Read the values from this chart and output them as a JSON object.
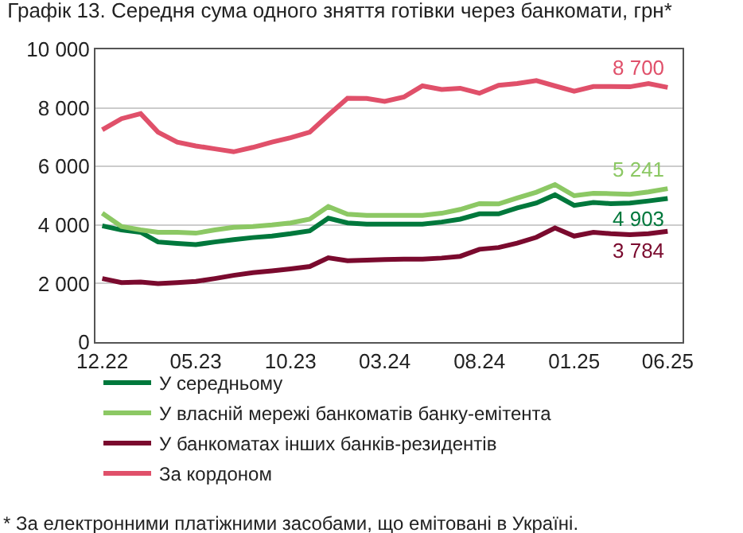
{
  "chart_data": {
    "type": "line",
    "title": "Графік 13. Середня сума одного зняття готівки через банкомати, грн*",
    "x": [
      "2022-12",
      "2023-01",
      "2023-02",
      "2023-03",
      "2023-04",
      "2023-05",
      "2023-06",
      "2023-07",
      "2023-08",
      "2023-09",
      "2023-10",
      "2023-11",
      "2023-12",
      "2024-01",
      "2024-02",
      "2024-03",
      "2024-04",
      "2024-05",
      "2024-06",
      "2024-07",
      "2024-08",
      "2024-09",
      "2024-10",
      "2024-11",
      "2024-12",
      "2025-01",
      "2025-02",
      "2025-03",
      "2025-04",
      "2025-05",
      "2025-06"
    ],
    "series": [
      {
        "name": "У середньому",
        "color": "#00783c",
        "values": [
          3970,
          3830,
          3750,
          3420,
          3370,
          3330,
          3420,
          3500,
          3570,
          3620,
          3700,
          3800,
          4230,
          4070,
          4030,
          4030,
          4030,
          4030,
          4100,
          4200,
          4380,
          4380,
          4580,
          4750,
          5030,
          4670,
          4770,
          4730,
          4750,
          4820,
          4903
        ],
        "value_labels": [
          null,
          null,
          null,
          null,
          null,
          null,
          null,
          null,
          null,
          null,
          null,
          null,
          null,
          null,
          null,
          null,
          null,
          null,
          null,
          null,
          null,
          null,
          null,
          null,
          null,
          null,
          null,
          null,
          null,
          null,
          "4 903"
        ]
      },
      {
        "name": "У власній мережі банкоматів банку-емітента",
        "color": "#8cc864",
        "values": [
          4400,
          3950,
          3830,
          3750,
          3750,
          3720,
          3830,
          3920,
          3950,
          4000,
          4070,
          4200,
          4630,
          4370,
          4330,
          4330,
          4330,
          4330,
          4400,
          4530,
          4730,
          4720,
          4920,
          5120,
          5380,
          5000,
          5080,
          5070,
          5050,
          5130,
          5241
        ],
        "value_labels": [
          null,
          null,
          null,
          null,
          null,
          null,
          null,
          null,
          null,
          null,
          null,
          null,
          null,
          null,
          null,
          null,
          null,
          null,
          null,
          null,
          null,
          null,
          null,
          null,
          null,
          null,
          null,
          null,
          null,
          null,
          "5 241"
        ]
      },
      {
        "name": "У банкоматах інших банків-резидентів",
        "color": "#7a0a2e",
        "values": [
          2170,
          2030,
          2050,
          2000,
          2030,
          2070,
          2170,
          2280,
          2370,
          2430,
          2500,
          2580,
          2880,
          2780,
          2800,
          2820,
          2830,
          2830,
          2870,
          2930,
          3170,
          3230,
          3380,
          3580,
          3900,
          3620,
          3750,
          3700,
          3670,
          3700,
          3784
        ],
        "value_labels": [
          null,
          null,
          null,
          null,
          null,
          null,
          null,
          null,
          null,
          null,
          null,
          null,
          null,
          null,
          null,
          null,
          null,
          null,
          null,
          null,
          null,
          null,
          null,
          null,
          null,
          null,
          null,
          null,
          null,
          null,
          "3 784"
        ]
      },
      {
        "name": "За кордоном",
        "color": "#e0506a",
        "values": [
          7250,
          7630,
          7800,
          7170,
          6830,
          6700,
          6600,
          6500,
          6650,
          6830,
          6980,
          7170,
          7750,
          8330,
          8320,
          8220,
          8370,
          8750,
          8630,
          8670,
          8500,
          8770,
          8830,
          8930,
          8750,
          8570,
          8730,
          8730,
          8720,
          8830,
          8700
        ],
        "value_labels": [
          null,
          null,
          null,
          null,
          null,
          null,
          null,
          null,
          null,
          null,
          null,
          null,
          null,
          null,
          null,
          null,
          null,
          null,
          null,
          null,
          null,
          null,
          null,
          null,
          null,
          null,
          null,
          null,
          null,
          null,
          "8 700"
        ]
      }
    ],
    "xlim": [
      "2022-11-20",
      "2025-06-25"
    ],
    "xticks": [
      {
        "value": "2022-12",
        "label": "12.22"
      },
      {
        "value": "2023-05",
        "label": "05.23"
      },
      {
        "value": "2023-10",
        "label": "10.23"
      },
      {
        "value": "2024-03",
        "label": "03.24"
      },
      {
        "value": "2024-08",
        "label": "08.24"
      },
      {
        "value": "2025-01",
        "label": "01.25"
      },
      {
        "value": "2025-06",
        "label": "06.25"
      }
    ],
    "ylim": [
      0,
      10000
    ],
    "yticks": [
      0,
      {
        "value": 2000,
        "label": "2 000"
      },
      {
        "value": 4000,
        "label": "4 000"
      },
      {
        "value": 6000,
        "label": "6 000"
      },
      {
        "value": 8000,
        "label": "8 000"
      },
      {
        "value": 10000,
        "label": "10 000"
      }
    ],
    "grid": "y",
    "legend": "bottom",
    "marker": "none",
    "line_style": "solid",
    "annotations": [
      "* За електронними платіжними засобами, що емітовані в Україні."
    ]
  }
}
